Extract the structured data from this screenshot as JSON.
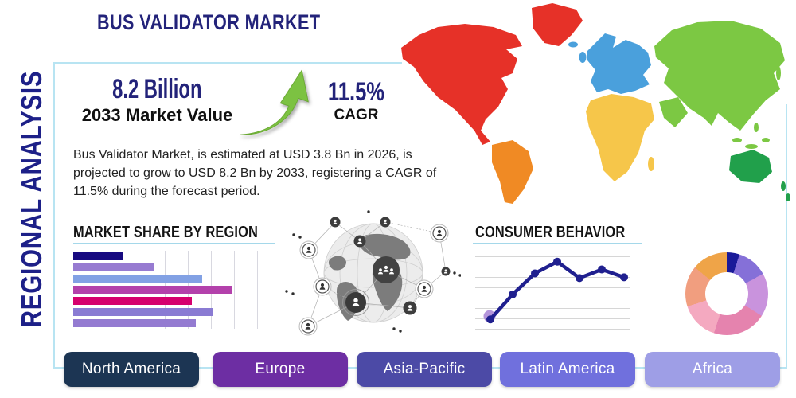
{
  "header": {
    "title": "BUS VALIDATOR MARKET",
    "side_label": "REGIONAL ANALYSIS"
  },
  "stats": {
    "market_value": "8.2 Billion",
    "market_value_label": "2033 Market Value",
    "cagr_value": "11.5%",
    "cagr_label": "CAGR",
    "description": "Bus Validator Market, is estimated at USD 3.8 Bn in 2026, is projected to grow to USD 8.2 Bn by 2033, registering a CAGR of 11.5% during the forecast period."
  },
  "theme": {
    "navy": "#23237a",
    "heading_black": "#141414",
    "accent_underline": "#a5d8ea",
    "box_border": "#b8e4f2",
    "arrow_green": "#7cc242"
  },
  "world_map_colors": {
    "north_america": "#e63128",
    "south_america": "#f08a24",
    "europe": "#4aa0dc",
    "africa": "#f6c64a",
    "asia": "#7cc843",
    "oceania": "#21a04b"
  },
  "chart_data": [
    {
      "type": "bar",
      "title": "MARKET SHARE BY REGION",
      "orientation": "horizontal",
      "values": [
        25,
        40,
        64,
        79,
        59,
        69,
        61
      ],
      "xlim": [
        0,
        100
      ],
      "grid": true,
      "note": "bars unlabeled in source; values are relative share of axis width",
      "colors": [
        "#170a80",
        "#977bd1",
        "#82a1e4",
        "#b341ab",
        "#d6006e",
        "#8a7bd3",
        "#947bd1"
      ]
    },
    {
      "type": "line",
      "title": "CONSUMER BEHAVIOR",
      "x": [
        1,
        2,
        3,
        4,
        5,
        6,
        7
      ],
      "values": [
        13,
        45,
        72,
        87,
        66,
        77,
        67
      ],
      "ylim": [
        0,
        100
      ],
      "grid": true,
      "line_color": "#20208f",
      "first_point_halo_color": "#b08fd8"
    },
    {
      "type": "pie",
      "subtype": "donut",
      "values_pct": [
        5,
        12,
        17,
        21,
        15,
        16,
        14
      ],
      "colors": [
        "#1a1a99",
        "#8570d8",
        "#c993dd",
        "#e583ae",
        "#f4a9c0",
        "#f19e7f",
        "#efa448"
      ],
      "hole_ratio": 0.54
    }
  ],
  "region_buttons": [
    {
      "label": "North America",
      "color": "#1c3553"
    },
    {
      "label": "Europe",
      "color": "#6d2ea3"
    },
    {
      "label": "Asia-Pacific",
      "color": "#4c4aa6"
    },
    {
      "label": "Latin America",
      "color": "#7070dd"
    },
    {
      "label": "Africa",
      "color": "#9e9ee6"
    }
  ]
}
